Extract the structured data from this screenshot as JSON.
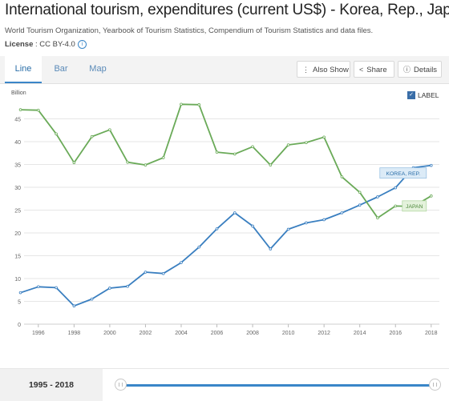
{
  "header": {
    "title": "International tourism, expenditures (current US$) - Korea, Rep., Japan",
    "source": "World Tourism Organization, Yearbook of Tourism Statistics, Compendium of Tourism Statistics and data files.",
    "license_label": "License",
    "license_value": ": CC BY-4.0"
  },
  "tabs": [
    {
      "label": "Line",
      "active": true
    },
    {
      "label": "Bar",
      "active": false
    },
    {
      "label": "Map",
      "active": false
    }
  ],
  "toolbar": {
    "also_show": "Also Show",
    "share": "Share",
    "details": "Details"
  },
  "label_toggle": {
    "text": "LABEL",
    "checked": true
  },
  "range": {
    "label": "1995 - 2018"
  },
  "colors": {
    "korea": "#3a7fc0",
    "japan": "#6aaa58",
    "accent": "#3a86c8"
  },
  "chart_data": {
    "type": "line",
    "title": "",
    "ylabel": "Billion",
    "xlabel": "",
    "ylim": [
      0,
      50
    ],
    "yticks": [
      0,
      5,
      10,
      15,
      20,
      25,
      30,
      35,
      40,
      45
    ],
    "xticks": [
      1996,
      1998,
      2000,
      2002,
      2004,
      2006,
      2008,
      2010,
      2012,
      2014,
      2016,
      2018
    ],
    "x": [
      1995,
      1996,
      1997,
      1998,
      1999,
      2000,
      2001,
      2002,
      2003,
      2004,
      2005,
      2006,
      2007,
      2008,
      2009,
      2010,
      2011,
      2012,
      2013,
      2014,
      2015,
      2016,
      2017,
      2018
    ],
    "grid": true,
    "series": [
      {
        "name": "KOREA, REP.",
        "color": "#3a7fc0",
        "values": [
          6.9,
          8.2,
          8.0,
          4.0,
          5.5,
          7.9,
          8.3,
          11.4,
          11.1,
          13.5,
          16.9,
          20.9,
          24.4,
          21.5,
          16.5,
          20.8,
          22.2,
          22.9,
          24.4,
          26.1,
          27.9,
          29.9,
          34.3,
          34.8
        ]
      },
      {
        "name": "JAPAN",
        "color": "#6aaa58",
        "values": [
          47.0,
          46.9,
          41.7,
          35.4,
          41.1,
          42.6,
          35.5,
          34.9,
          36.5,
          48.2,
          48.1,
          37.7,
          37.3,
          38.9,
          34.9,
          39.3,
          39.8,
          41.0,
          32.3,
          28.9,
          23.3,
          25.9,
          25.8,
          28.1
        ]
      }
    ]
  }
}
